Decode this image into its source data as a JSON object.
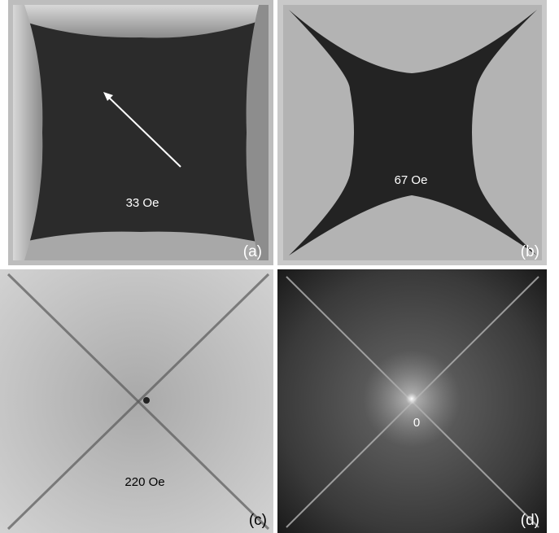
{
  "panels": [
    {
      "tag": "(a)",
      "field": "33 Oe"
    },
    {
      "tag": "(b)",
      "field": "67 Oe"
    },
    {
      "tag": "(c)",
      "field": "220 Oe"
    },
    {
      "tag": "(d)",
      "field": "0"
    }
  ]
}
